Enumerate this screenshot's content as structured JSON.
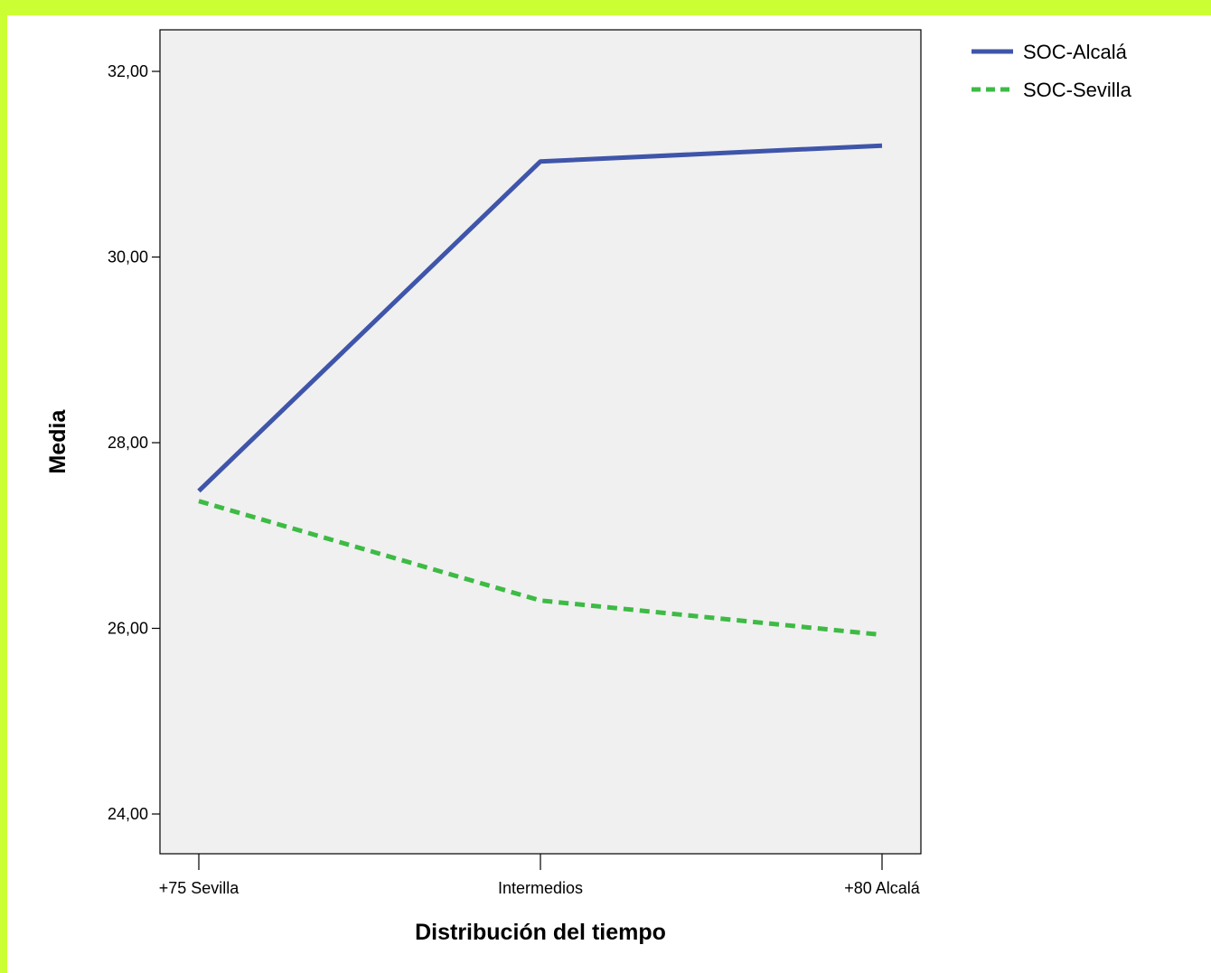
{
  "chart_data": {
    "type": "line",
    "xlabel": "Distribución del tiempo",
    "ylabel": "Media",
    "categories": [
      "+75 Sevilla",
      "Intermedios",
      "+80 Alcalá"
    ],
    "ylim": [
      23.6,
      32.5
    ],
    "yticks": [
      24,
      26,
      28,
      30,
      32
    ],
    "ytick_labels": [
      "24,00",
      "26,00",
      "28,00",
      "30,00",
      "32,00"
    ],
    "series": [
      {
        "name": "SOC-Alcalá",
        "values": [
          27.48,
          31.03,
          31.2
        ],
        "color": "#3f55aa",
        "dash": "solid"
      },
      {
        "name": "SOC-Sevilla",
        "values": [
          27.37,
          26.3,
          25.93
        ],
        "color": "#3dbb44",
        "dash": "dashed"
      }
    ],
    "grid": false,
    "legend": "top-right",
    "plot_background": "#f0f0f0",
    "frame_color": "#ccff33"
  }
}
